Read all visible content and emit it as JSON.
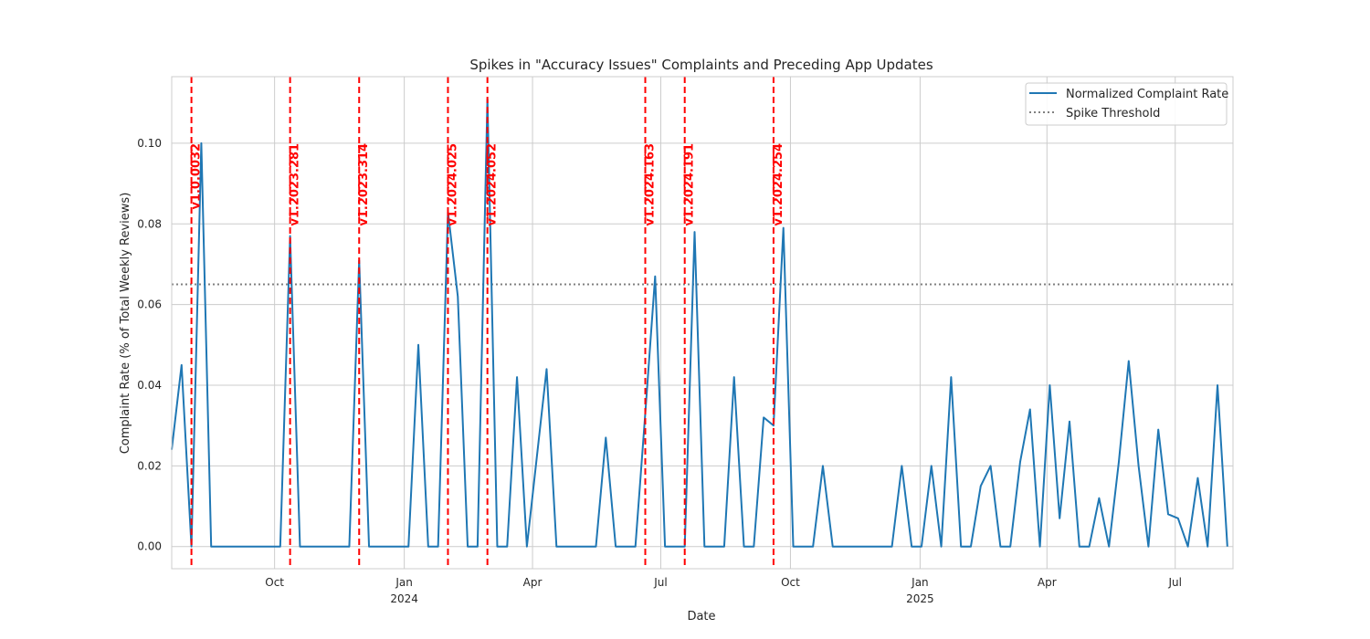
{
  "chart_data": {
    "type": "line",
    "title": "Spikes in \"Accuracy Issues\" Complaints and Preceding App Updates",
    "xlabel": "Date",
    "ylabel": "Complaint Rate (% of Total Weekly Reviews)",
    "x_range": [
      "2023-07-20",
      "2025-08-11"
    ],
    "ylim": [
      -0.0055,
      0.1165
    ],
    "y_ticks": [
      "0.00",
      "0.02",
      "0.04",
      "0.06",
      "0.08",
      "0.10"
    ],
    "x_ticks": [
      {
        "date": "2023-10-01",
        "label": "Oct",
        "sublabel": ""
      },
      {
        "date": "2024-01-01",
        "label": "Jan",
        "sublabel": "2024"
      },
      {
        "date": "2024-04-01",
        "label": "Apr",
        "sublabel": ""
      },
      {
        "date": "2024-07-01",
        "label": "Jul",
        "sublabel": ""
      },
      {
        "date": "2024-10-01",
        "label": "Oct",
        "sublabel": ""
      },
      {
        "date": "2025-01-01",
        "label": "Jan",
        "sublabel": "2025"
      },
      {
        "date": "2025-04-01",
        "label": "Apr",
        "sublabel": ""
      },
      {
        "date": "2025-07-01",
        "label": "Jul",
        "sublabel": ""
      }
    ],
    "grid": true,
    "legend_position": "top-right",
    "series": [
      {
        "name": "Normalized Complaint Rate",
        "color": "#1f77b4",
        "style": "solid",
        "points": [
          [
            "2023-07-20",
            0.024
          ],
          [
            "2023-07-27",
            0.045
          ],
          [
            "2023-08-03",
            0.0
          ],
          [
            "2023-08-10",
            0.1
          ],
          [
            "2023-08-17",
            0.0
          ],
          [
            "2023-08-24",
            0.0
          ],
          [
            "2023-08-31",
            0.0
          ],
          [
            "2023-09-07",
            0.0
          ],
          [
            "2023-09-14",
            0.0
          ],
          [
            "2023-09-21",
            0.0
          ],
          [
            "2023-09-28",
            0.0
          ],
          [
            "2023-10-05",
            0.0
          ],
          [
            "2023-10-12",
            0.077
          ],
          [
            "2023-10-19",
            0.0
          ],
          [
            "2023-10-26",
            0.0
          ],
          [
            "2023-11-02",
            0.0
          ],
          [
            "2023-11-09",
            0.0
          ],
          [
            "2023-11-16",
            0.0
          ],
          [
            "2023-11-23",
            0.0
          ],
          [
            "2023-11-30",
            0.071
          ],
          [
            "2023-12-07",
            0.0
          ],
          [
            "2023-12-14",
            0.0
          ],
          [
            "2023-12-21",
            0.0
          ],
          [
            "2023-12-28",
            0.0
          ],
          [
            "2024-01-04",
            0.0
          ],
          [
            "2024-01-11",
            0.05
          ],
          [
            "2024-01-18",
            0.0
          ],
          [
            "2024-01-25",
            0.0
          ],
          [
            "2024-02-01",
            0.083
          ],
          [
            "2024-02-08",
            0.062
          ],
          [
            "2024-02-15",
            0.0
          ],
          [
            "2024-02-22",
            0.0
          ],
          [
            "2024-02-29",
            0.111
          ],
          [
            "2024-03-07",
            0.0
          ],
          [
            "2024-03-14",
            0.0
          ],
          [
            "2024-03-21",
            0.042
          ],
          [
            "2024-03-28",
            0.0
          ],
          [
            "2024-04-04",
            0.022
          ],
          [
            "2024-04-11",
            0.044
          ],
          [
            "2024-04-18",
            0.0
          ],
          [
            "2024-04-25",
            0.0
          ],
          [
            "2024-05-02",
            0.0
          ],
          [
            "2024-05-09",
            0.0
          ],
          [
            "2024-05-16",
            0.0
          ],
          [
            "2024-05-23",
            0.027
          ],
          [
            "2024-05-30",
            0.0
          ],
          [
            "2024-06-06",
            0.0
          ],
          [
            "2024-06-13",
            0.0
          ],
          [
            "2024-06-20",
            0.033
          ],
          [
            "2024-06-27",
            0.067
          ],
          [
            "2024-07-04",
            0.0
          ],
          [
            "2024-07-11",
            0.0
          ],
          [
            "2024-07-18",
            0.0
          ],
          [
            "2024-07-25",
            0.078
          ],
          [
            "2024-08-01",
            0.0
          ],
          [
            "2024-08-08",
            0.0
          ],
          [
            "2024-08-15",
            0.0
          ],
          [
            "2024-08-22",
            0.042
          ],
          [
            "2024-08-29",
            0.0
          ],
          [
            "2024-09-05",
            0.0
          ],
          [
            "2024-09-12",
            0.032
          ],
          [
            "2024-09-19",
            0.03
          ],
          [
            "2024-09-26",
            0.079
          ],
          [
            "2024-10-03",
            0.0
          ],
          [
            "2024-10-10",
            0.0
          ],
          [
            "2024-10-17",
            0.0
          ],
          [
            "2024-10-24",
            0.02
          ],
          [
            "2024-10-31",
            0.0
          ],
          [
            "2024-11-07",
            0.0
          ],
          [
            "2024-11-14",
            0.0
          ],
          [
            "2024-11-21",
            0.0
          ],
          [
            "2024-11-28",
            0.0
          ],
          [
            "2024-12-05",
            0.0
          ],
          [
            "2024-12-12",
            0.0
          ],
          [
            "2024-12-19",
            0.02
          ],
          [
            "2024-12-26",
            0.0
          ],
          [
            "2025-01-02",
            0.0
          ],
          [
            "2025-01-09",
            0.02
          ],
          [
            "2025-01-16",
            0.0
          ],
          [
            "2025-01-23",
            0.042
          ],
          [
            "2025-01-30",
            0.0
          ],
          [
            "2025-02-06",
            0.0
          ],
          [
            "2025-02-13",
            0.015
          ],
          [
            "2025-02-20",
            0.02
          ],
          [
            "2025-02-27",
            0.0
          ],
          [
            "2025-03-06",
            0.0
          ],
          [
            "2025-03-13",
            0.021
          ],
          [
            "2025-03-20",
            0.034
          ],
          [
            "2025-03-27",
            0.0
          ],
          [
            "2025-04-03",
            0.04
          ],
          [
            "2025-04-10",
            0.007
          ],
          [
            "2025-04-17",
            0.031
          ],
          [
            "2025-04-24",
            0.0
          ],
          [
            "2025-05-01",
            0.0
          ],
          [
            "2025-05-08",
            0.012
          ],
          [
            "2025-05-15",
            0.0
          ],
          [
            "2025-05-22",
            0.021
          ],
          [
            "2025-05-29",
            0.046
          ],
          [
            "2025-06-05",
            0.02
          ],
          [
            "2025-06-12",
            0.0
          ],
          [
            "2025-06-19",
            0.029
          ],
          [
            "2025-06-26",
            0.008
          ],
          [
            "2025-07-03",
            0.007
          ],
          [
            "2025-07-10",
            0.0
          ],
          [
            "2025-07-17",
            0.017
          ],
          [
            "2025-07-24",
            0.0
          ],
          [
            "2025-07-31",
            0.04
          ],
          [
            "2025-08-07",
            0.0
          ]
        ]
      },
      {
        "name": "Spike Threshold",
        "color": "#808080",
        "style": "dotted",
        "value": 0.065
      }
    ],
    "updates": [
      {
        "date": "2023-08-03",
        "label": "v1.0.0032"
      },
      {
        "date": "2023-10-12",
        "label": "v1.2023.281"
      },
      {
        "date": "2023-11-30",
        "label": "v1.2023.314"
      },
      {
        "date": "2024-02-01",
        "label": "v1.2024.025"
      },
      {
        "date": "2024-02-29",
        "label": "v1.2024.052"
      },
      {
        "date": "2024-06-20",
        "label": "v1.2024.163"
      },
      {
        "date": "2024-07-18",
        "label": "v1.2024.191"
      },
      {
        "date": "2024-09-19",
        "label": "v1.2024.254"
      }
    ],
    "update_color": "#ff0000"
  }
}
